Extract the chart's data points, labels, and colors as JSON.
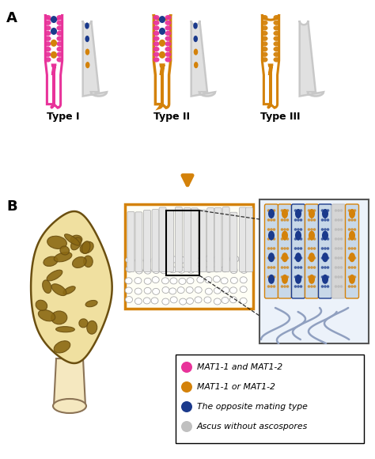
{
  "title_A": "A",
  "title_B": "B",
  "type_labels": [
    "Type I",
    "Type II",
    "Type III"
  ],
  "magenta": "#E8339A",
  "orange": "#D4820A",
  "blue": "#1B3A8C",
  "light_blue": "#C8D8E8",
  "light_gray": "#C8C8C8",
  "white": "#FFFFFF",
  "arrow_color": "#D4820A",
  "legend_items": [
    {
      "color": "#E8339A",
      "text": "MAT1-1 and MAT1-2"
    },
    {
      "color": "#D4820A",
      "text": "MAT1-1 or MAT1-2"
    },
    {
      "color": "#1B3A8C",
      "text": "The opposite mating type"
    },
    {
      "color": "#C0C0C0",
      "text": "Ascus without ascospores"
    }
  ],
  "bg_color": "#FFFFFF",
  "morel_cap_color": "#F0E0A0",
  "morel_pit_color": "#8B6914",
  "morel_edge_color": "#6B4F10",
  "stem_color": "#F5E8C0",
  "stem_edge": "#8B7355"
}
